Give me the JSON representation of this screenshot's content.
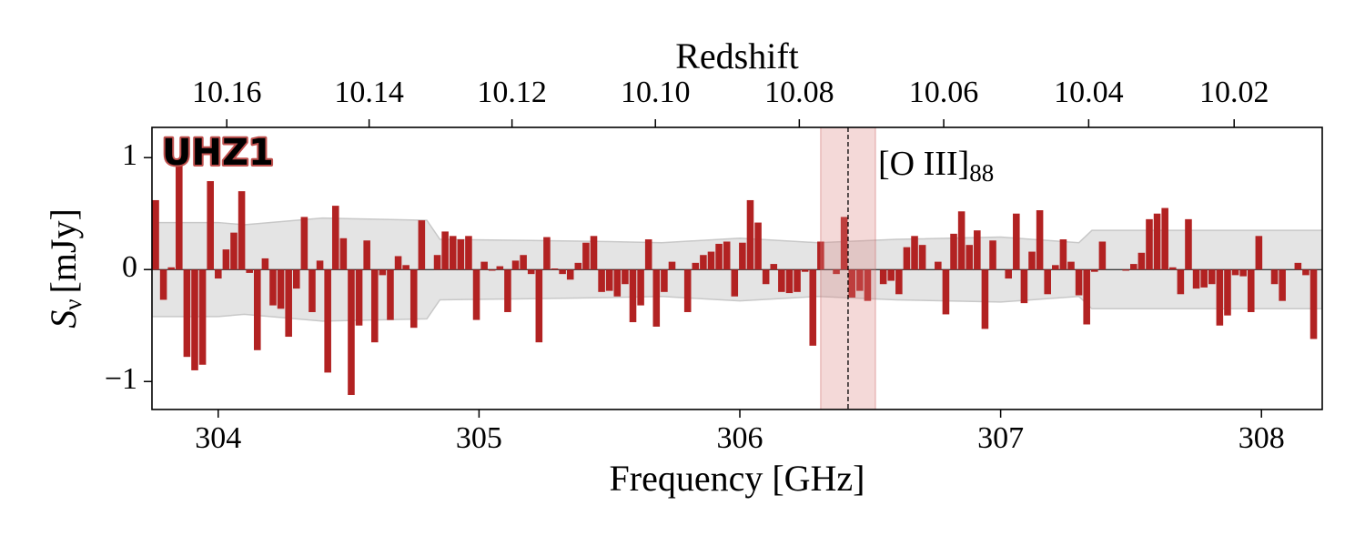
{
  "chart_data": {
    "type": "bar",
    "label": "UHZ1",
    "xlabel": "Frequency [GHz]",
    "ylabel": {
      "symbol": "S",
      "subscript": "ν",
      "unit": "[mJy]"
    },
    "x2label": "Redshift",
    "annotation": {
      "text": "[O III]",
      "subscript": "88"
    },
    "xlim": [
      303.746,
      308.233
    ],
    "ylim": [
      -1.25,
      1.27
    ],
    "xticks": [
      304,
      305,
      306,
      307,
      308
    ],
    "yticks": [
      {
        "value": -1,
        "label": "−1"
      },
      0,
      1
    ],
    "x2ticks": [
      10.16,
      10.14,
      10.12,
      {
        "value": 10.1,
        "label": "10.10"
      },
      10.08,
      10.06,
      10.04,
      10.02
    ],
    "color": "#b22222",
    "line_center": 306.415,
    "line_span": [
      306.31,
      306.52
    ],
    "noise_x": [
      303.746,
      304.0,
      304.1,
      304.4,
      304.6,
      304.8,
      304.85,
      305.2,
      305.5,
      305.7,
      306.0,
      306.3,
      306.6,
      307.0,
      307.3,
      307.35,
      307.8,
      308.233
    ],
    "noise": [
      0.42,
      0.42,
      0.4,
      0.46,
      0.45,
      0.44,
      0.27,
      0.26,
      0.25,
      0.24,
      0.28,
      0.24,
      0.27,
      0.29,
      0.24,
      0.35,
      0.35,
      0.35
    ],
    "x": [
      303.76,
      303.79,
      303.82,
      303.85,
      303.88,
      303.91,
      303.94,
      303.97,
      304.0,
      304.03,
      304.06,
      304.09,
      304.12,
      304.15,
      304.18,
      304.21,
      304.24,
      304.27,
      304.3,
      304.33,
      304.36,
      304.39,
      304.42,
      304.45,
      304.48,
      304.51,
      304.54,
      304.57,
      304.6,
      304.63,
      304.66,
      304.69,
      304.72,
      304.75,
      304.78,
      304.81,
      304.84,
      304.87,
      304.9,
      304.93,
      304.96,
      304.99,
      305.02,
      305.05,
      305.08,
      305.11,
      305.14,
      305.17,
      305.2,
      305.23,
      305.26,
      305.29,
      305.32,
      305.35,
      305.38,
      305.41,
      305.44,
      305.47,
      305.5,
      305.53,
      305.56,
      305.59,
      305.62,
      305.65,
      305.68,
      305.71,
      305.74,
      305.77,
      305.8,
      305.83,
      305.86,
      305.89,
      305.92,
      305.95,
      305.98,
      306.01,
      306.04,
      306.07,
      306.1,
      306.13,
      306.16,
      306.19,
      306.22,
      306.25,
      306.28,
      306.31,
      306.34,
      306.37,
      306.4,
      306.43,
      306.46,
      306.49,
      306.52,
      306.55,
      306.58,
      306.61,
      306.64,
      306.67,
      306.7,
      306.73,
      306.76,
      306.79,
      306.82,
      306.85,
      306.88,
      306.91,
      306.94,
      306.97,
      307.0,
      307.03,
      307.06,
      307.09,
      307.12,
      307.15,
      307.18,
      307.21,
      307.24,
      307.27,
      307.3,
      307.33,
      307.36,
      307.39,
      307.42,
      307.45,
      307.48,
      307.51,
      307.54,
      307.57,
      307.6,
      307.63,
      307.66,
      307.69,
      307.72,
      307.75,
      307.78,
      307.81,
      307.84,
      307.87,
      307.9,
      307.93,
      307.96,
      307.99,
      308.02,
      308.05,
      308.08,
      308.11,
      308.14,
      308.17,
      308.2
    ],
    "values": [
      0.62,
      -0.27,
      0.02,
      0.95,
      -0.78,
      -0.9,
      -0.85,
      0.79,
      -0.08,
      0.18,
      0.33,
      0.7,
      -0.03,
      -0.72,
      0.1,
      -0.32,
      -0.35,
      -0.6,
      -0.17,
      0.47,
      -0.38,
      0.08,
      -0.92,
      0.57,
      0.28,
      -1.12,
      -0.5,
      0.26,
      -0.65,
      -0.05,
      -0.45,
      0.12,
      0.04,
      -0.52,
      0.44,
      0.0,
      0.13,
      0.34,
      0.3,
      0.27,
      0.3,
      -0.45,
      0.07,
      -0.01,
      0.03,
      -0.38,
      0.08,
      0.13,
      -0.04,
      -0.65,
      0.29,
      0.01,
      -0.04,
      -0.09,
      0.06,
      0.24,
      0.3,
      -0.2,
      -0.19,
      -0.24,
      -0.13,
      -0.47,
      -0.32,
      0.27,
      -0.51,
      -0.2,
      0.07,
      0.0,
      -0.38,
      0.06,
      0.13,
      0.16,
      0.23,
      0.25,
      -0.24,
      0.24,
      0.62,
      0.42,
      -0.13,
      0.05,
      -0.2,
      -0.21,
      -0.2,
      -0.02,
      -0.68,
      0.25,
      0.0,
      -0.04,
      0.47,
      -0.25,
      -0.19,
      -0.28,
      0.0,
      -0.13,
      -0.1,
      -0.22,
      0.2,
      0.3,
      0.22,
      0.0,
      0.07,
      -0.4,
      0.32,
      0.52,
      0.22,
      0.35,
      -0.53,
      0.26,
      0.0,
      -0.08,
      0.5,
      -0.3,
      0.16,
      0.53,
      -0.22,
      0.04,
      0.27,
      0.07,
      -0.23,
      -0.49,
      -0.02,
      0.25,
      0.0,
      0.0,
      -0.01,
      0.05,
      0.15,
      0.45,
      0.5,
      0.55,
      0.02,
      -0.22,
      0.45,
      -0.17,
      -0.16,
      -0.13,
      -0.5,
      -0.41,
      -0.05,
      -0.06,
      -0.38,
      0.3,
      0.0,
      -0.13,
      -0.28,
      0.0,
      0.06,
      -0.05,
      -0.62
    ]
  }
}
